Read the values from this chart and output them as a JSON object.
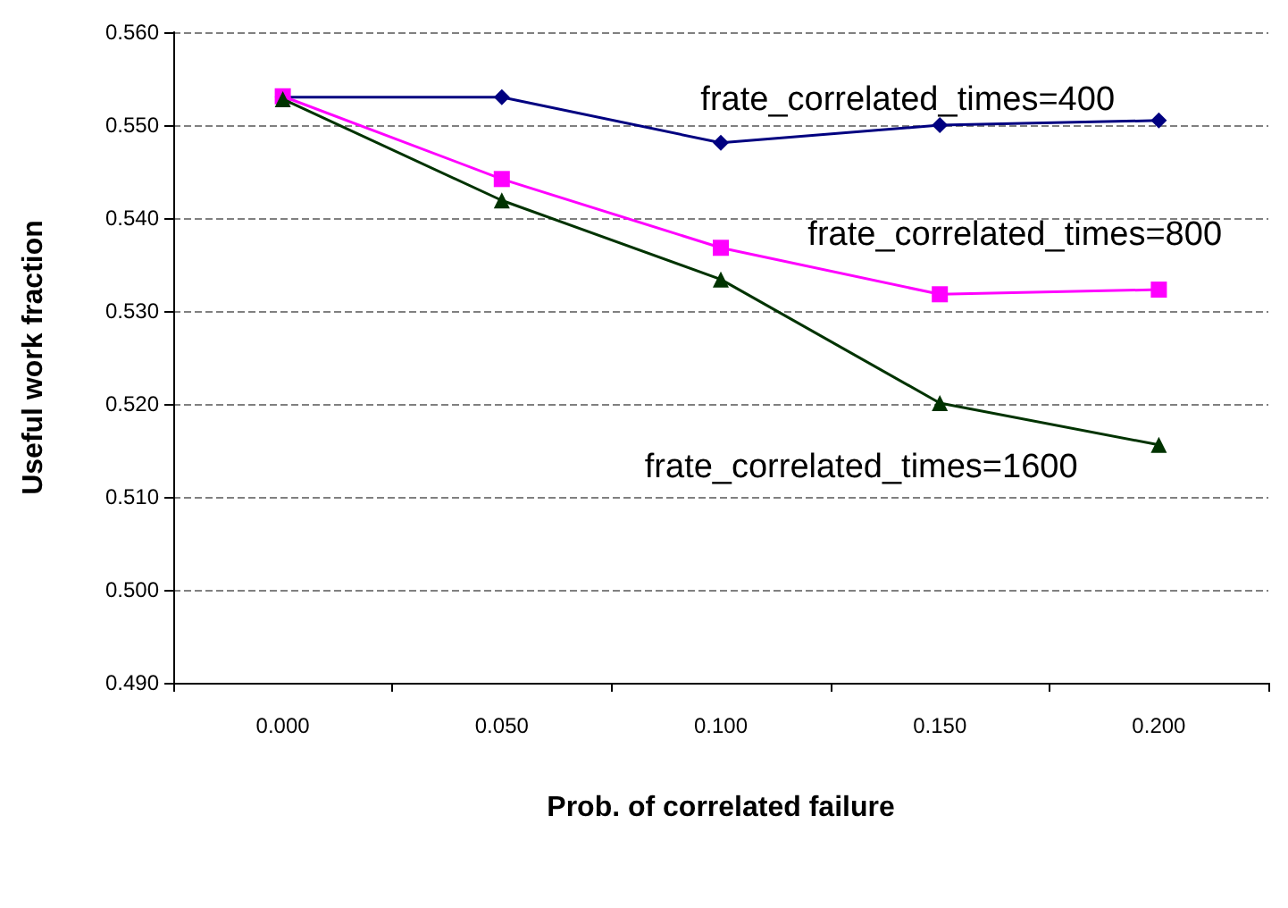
{
  "chart_data": {
    "type": "line",
    "xlabel": "Prob. of correlated failure",
    "ylabel": "Useful work fraction",
    "categories": [
      "0.000",
      "0.050",
      "0.100",
      "0.150",
      "0.200"
    ],
    "series": [
      {
        "name": "frate_correlated_times=400",
        "color": "#000080",
        "marker": "diamond",
        "values": [
          0.553,
          0.553,
          0.5481,
          0.55,
          0.5505
        ]
      },
      {
        "name": "frate_correlated_times=800",
        "color": "#ff00ff",
        "marker": "square",
        "values": [
          0.5531,
          0.5442,
          0.5368,
          0.5318,
          0.5323
        ]
      },
      {
        "name": "frate_correlated_times=1600",
        "color": "#003300",
        "marker": "triangle",
        "values": [
          0.5528,
          0.5419,
          0.5334,
          0.5201,
          0.5156
        ]
      }
    ],
    "ylim": [
      0.49,
      0.56
    ],
    "yticks": [
      {
        "value": 0.49,
        "label": "0.490"
      },
      {
        "value": 0.5,
        "label": "0.500"
      },
      {
        "value": 0.51,
        "label": "0.510"
      },
      {
        "value": 0.52,
        "label": "0.520"
      },
      {
        "value": 0.53,
        "label": "0.530"
      },
      {
        "value": 0.54,
        "label": "0.540"
      },
      {
        "value": 0.55,
        "label": "0.550"
      },
      {
        "value": 0.56,
        "label": "0.560"
      }
    ],
    "grid": "y",
    "legend": false
  }
}
